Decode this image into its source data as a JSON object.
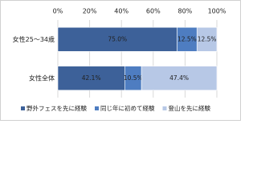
{
  "chart_data": {
    "type": "stacked-bar-horizontal",
    "categories": [
      "女性25～34歳",
      "女性全体"
    ],
    "series": [
      {
        "name": "野外フェスを先に経験",
        "color": "#3d6199",
        "values": [
          75.0,
          42.1
        ],
        "value_labels": [
          "75.0%",
          "42.1%"
        ]
      },
      {
        "name": "同じ年に初めて経験",
        "color": "#4e7dc1",
        "values": [
          12.5,
          10.5
        ],
        "value_labels": [
          "12.5%",
          "10.5%"
        ]
      },
      {
        "name": "登山を先に経験",
        "color": "#b7c8e6",
        "values": [
          12.5,
          47.4
        ],
        "value_labels": [
          "12.5%",
          "47.4%"
        ]
      }
    ],
    "xlim": [
      0,
      100
    ],
    "xticks": [
      {
        "value": 0,
        "label": "0%"
      },
      {
        "value": 20,
        "label": "20%"
      },
      {
        "value": 40,
        "label": "40%"
      },
      {
        "value": 60,
        "label": "60%"
      },
      {
        "value": 80,
        "label": "80%"
      },
      {
        "value": 100,
        "label": "100%"
      }
    ],
    "grid": true,
    "legend": "bottom"
  }
}
